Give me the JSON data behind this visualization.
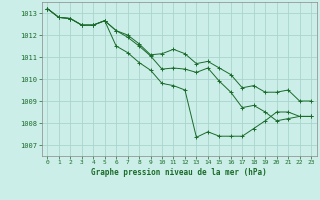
{
  "title": "Graphe pression niveau de la mer (hPa)",
  "bg_color": "#cceee8",
  "grid_color": "#aad4cc",
  "line_color": "#1a6b2a",
  "ylim": [
    1006.5,
    1013.5
  ],
  "xlim": [
    -0.5,
    23.5
  ],
  "yticks": [
    1007,
    1008,
    1009,
    1010,
    1011,
    1012,
    1013
  ],
  "xticks": [
    0,
    1,
    2,
    3,
    4,
    5,
    6,
    7,
    8,
    9,
    10,
    11,
    12,
    13,
    14,
    15,
    16,
    17,
    18,
    19,
    20,
    21,
    22,
    23
  ],
  "series": [
    [
      1013.2,
      1012.8,
      1012.75,
      1012.45,
      1012.45,
      1012.65,
      1011.5,
      1011.2,
      1010.75,
      1010.4,
      1009.8,
      1009.7,
      1009.5,
      1007.35,
      1007.6,
      1007.4,
      1007.4,
      1007.4,
      1007.75,
      1008.1,
      1008.5,
      1008.5,
      1008.3,
      1008.3
    ],
    [
      1013.2,
      1012.8,
      1012.75,
      1012.45,
      1012.45,
      1012.65,
      1012.2,
      1011.9,
      1011.5,
      1011.05,
      1010.45,
      1010.5,
      1010.45,
      1010.3,
      1010.5,
      1009.9,
      1009.4,
      1008.7,
      1008.8,
      1008.5,
      1008.1,
      1008.2,
      1008.3,
      1008.3
    ],
    [
      1013.2,
      1012.8,
      1012.75,
      1012.45,
      1012.45,
      1012.65,
      1012.2,
      1012.0,
      1011.6,
      1011.1,
      1011.15,
      1011.35,
      1011.15,
      1010.7,
      1010.8,
      1010.5,
      1010.2,
      1009.6,
      1009.7,
      1009.4,
      1009.4,
      1009.5,
      1009.0,
      1009.0
    ]
  ]
}
